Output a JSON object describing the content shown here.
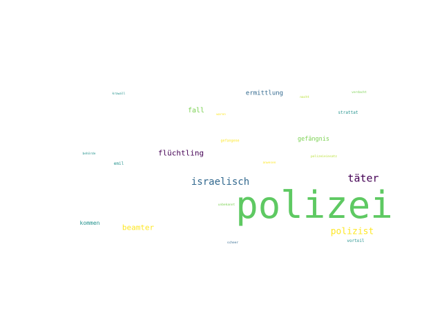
{
  "wordcloud": {
    "words": [
      {
        "text": "polizei",
        "color": "#5ec962"
      },
      {
        "text": "täter",
        "color": "#440154"
      },
      {
        "text": "israelisch",
        "color": "#31688e"
      },
      {
        "text": "polizist",
        "color": "#fde725"
      },
      {
        "text": "flüchtling",
        "color": "#440154"
      },
      {
        "text": "beamter",
        "color": "#fde725"
      },
      {
        "text": "fall",
        "color": "#7ad151"
      },
      {
        "text": "ermittlung",
        "color": "#31688e"
      },
      {
        "text": "gefängnis",
        "color": "#7ad151"
      },
      {
        "text": "kommen",
        "color": "#21918c"
      },
      {
        "text": "strattat",
        "color": "#21918c"
      },
      {
        "text": "emil",
        "color": "#21918c"
      },
      {
        "text": "vortoil",
        "color": "#21918c"
      },
      {
        "text": "behörde",
        "color": "#21918c"
      },
      {
        "text": "krawall",
        "color": "#21918c"
      },
      {
        "text": "gefangene",
        "color": "#fde725"
      },
      {
        "text": "verdacht",
        "color": "#7ad151"
      },
      {
        "text": "nacht",
        "color": "#b5de2b"
      },
      {
        "text": "waren",
        "color": "#fde725"
      },
      {
        "text": "polizeieinsatz",
        "color": "#b5de2b"
      },
      {
        "text": "anwesen",
        "color": "#fde725"
      },
      {
        "text": "unbekannt",
        "color": "#7ad151"
      },
      {
        "text": "scheer",
        "color": "#31688e"
      }
    ]
  }
}
